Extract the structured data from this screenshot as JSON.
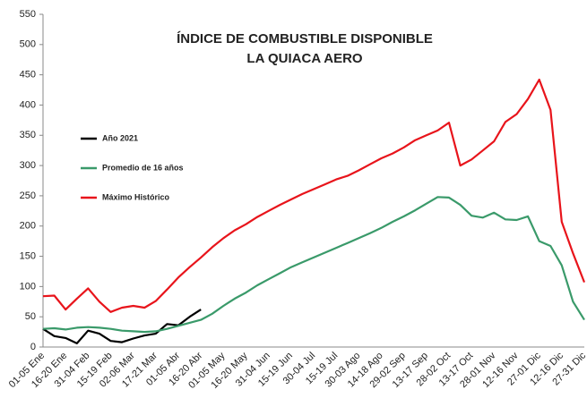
{
  "chart_data": {
    "type": "line",
    "title": "ÍNDICE DE COMBUSTIBLE DISPONIBLE",
    "subtitle": "LA QUIACA AERO",
    "categories": [
      "01-05 Ene",
      null,
      "16-20 Ene",
      null,
      "31-04 Feb",
      null,
      "15-19 Feb",
      null,
      "02-06 Mar",
      null,
      "17-21 Mar",
      null,
      "01-05 Abr",
      null,
      "16-20 Abr",
      null,
      "01-05 May",
      null,
      "16-20 May",
      null,
      "31-04 Jun",
      null,
      "15-19 Jun",
      null,
      "30-04 Jul",
      null,
      "15-19 Jul",
      null,
      "30-03 Ago",
      null,
      "14-18 Ago",
      null,
      "29-02 Sep",
      null,
      "13-17 Sep",
      null,
      "28-02 Oct",
      null,
      "13-17 Oct",
      null,
      "28-01 Nov",
      null,
      "12-16 Nov",
      null,
      "27-01 Dic",
      null,
      "12-16 Dic",
      null,
      "27-31 Dic"
    ],
    "series": [
      {
        "name": "Año 2021",
        "color": "#000000",
        "values": [
          30,
          18,
          15,
          6,
          27,
          22,
          10,
          8,
          14,
          19,
          22,
          38,
          36,
          50,
          62,
          null,
          null,
          null,
          null,
          null,
          null,
          null,
          null,
          null,
          null,
          null,
          null,
          null,
          null,
          null,
          null,
          null,
          null,
          null,
          null,
          null,
          null,
          null,
          null,
          null,
          null,
          null,
          null,
          null,
          null,
          null,
          null,
          null,
          null
        ]
      },
      {
        "name": "Promedio de 16 años",
        "color": "#3a9a6a",
        "values": [
          30,
          31,
          29,
          32,
          33,
          32,
          30,
          27,
          26,
          25,
          26,
          30,
          35,
          40,
          45,
          55,
          68,
          80,
          90,
          102,
          112,
          122,
          132,
          140,
          148,
          156,
          164,
          172,
          180,
          188,
          197,
          207,
          216,
          226,
          237,
          248,
          247,
          235,
          217,
          214,
          222,
          211,
          210,
          216,
          175,
          167,
          135,
          75,
          45
        ]
      },
      {
        "name": "Máximo Histórico",
        "color": "#e8141b",
        "values": [
          84,
          85,
          62,
          80,
          97,
          75,
          58,
          65,
          68,
          65,
          76,
          95,
          115,
          132,
          148,
          165,
          180,
          193,
          203,
          215,
          225,
          235,
          244,
          253,
          261,
          269,
          277,
          283,
          292,
          302,
          312,
          320,
          330,
          342,
          350,
          358,
          371,
          300,
          310,
          325,
          340,
          372,
          385,
          410,
          442,
          392,
          207,
          155,
          107
        ]
      }
    ],
    "ylim": [
      0,
      550
    ],
    "yticks": [
      0,
      50,
      100,
      150,
      200,
      250,
      300,
      350,
      400,
      450,
      500,
      550
    ],
    "grid": false,
    "legend": "upper left"
  }
}
